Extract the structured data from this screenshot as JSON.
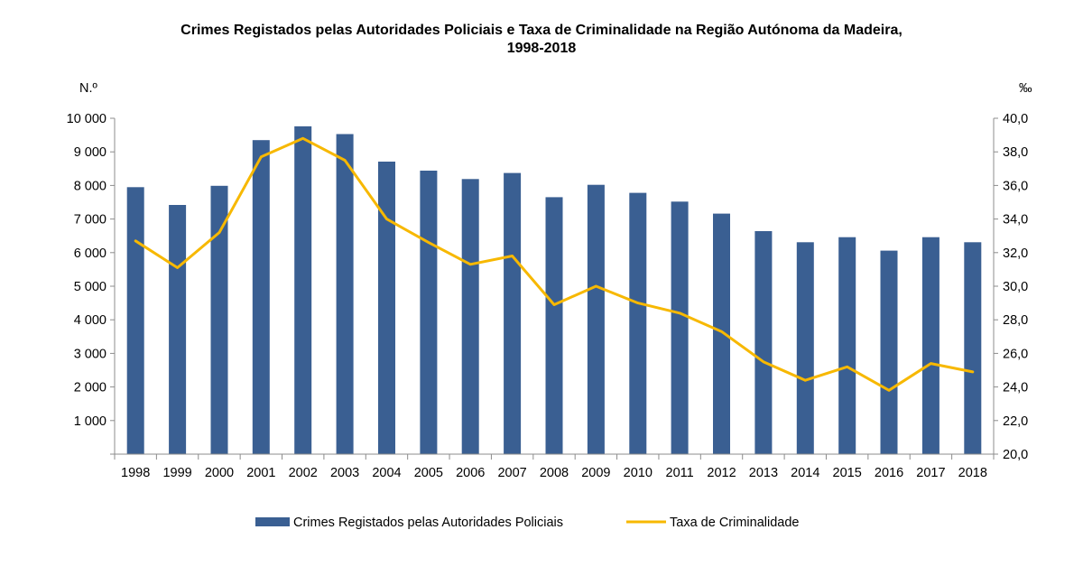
{
  "chart_data": {
    "type": "bar",
    "title_line1": "Crimes Registados pelas Autoridades Policiais e Taxa de Criminalidade na Região Autónoma da Madeira,",
    "title_line2": "1998-2018",
    "ylabel_left": "N.º",
    "ylabel_right": "‰",
    "categories": [
      "1998",
      "1999",
      "2000",
      "2001",
      "2002",
      "2003",
      "2004",
      "2005",
      "2006",
      "2007",
      "2008",
      "2009",
      "2010",
      "2011",
      "2012",
      "2013",
      "2014",
      "2015",
      "2016",
      "2017",
      "2018"
    ],
    "y_left_ticks": [
      "",
      "1 000",
      "2 000",
      "3 000",
      "4 000",
      "5 000",
      "6 000",
      "7 000",
      "8 000",
      "9 000",
      "10 000"
    ],
    "y_right_ticks": [
      "20,0",
      "22,0",
      "24,0",
      "26,0",
      "28,0",
      "30,0",
      "32,0",
      "34,0",
      "36,0",
      "38,0",
      "40,0"
    ],
    "ylim_left": [
      0,
      10000
    ],
    "ylim_right": [
      20,
      40
    ],
    "series": [
      {
        "name": "Crimes Registados pelas Autoridades Policiais",
        "type": "bar",
        "axis": "left",
        "color": "#3A5F92",
        "values": [
          7950,
          7420,
          7990,
          9350,
          9760,
          9530,
          8710,
          8440,
          8190,
          8370,
          7650,
          8020,
          7780,
          7520,
          7160,
          6640,
          6310,
          6460,
          6060,
          6460,
          6310
        ]
      },
      {
        "name": "Taxa de Criminalidade",
        "type": "line",
        "axis": "right",
        "color": "#F7B800",
        "values": [
          32.7,
          31.1,
          33.2,
          37.7,
          38.8,
          37.5,
          34.0,
          32.6,
          31.3,
          31.8,
          28.9,
          30.0,
          29.0,
          28.4,
          27.3,
          25.5,
          24.4,
          25.2,
          23.8,
          25.4,
          24.9
        ]
      }
    ],
    "grid": false,
    "legend": "bottom"
  }
}
